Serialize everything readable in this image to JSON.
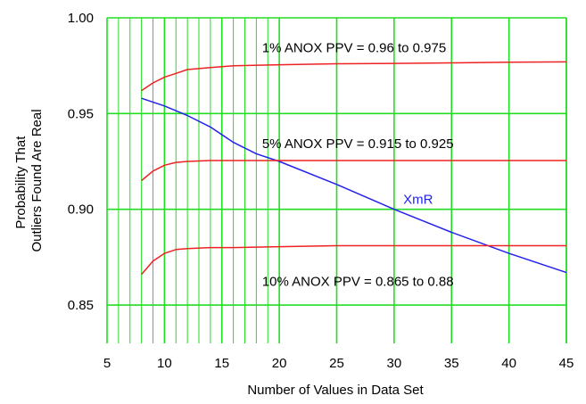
{
  "chart_data": {
    "type": "line",
    "xlabel": "Number of Values in Data Set",
    "ylabel": [
      "Probability That",
      "Outliers Found Are Real"
    ],
    "xlim": [
      5,
      45
    ],
    "ylim": [
      0.83,
      1.0
    ],
    "x_ticks": [
      "5",
      "10",
      "15",
      "20",
      "25",
      "30",
      "35",
      "40",
      "45"
    ],
    "y_ticks": [
      "0.85",
      "0.90",
      "0.95",
      "1.00"
    ],
    "grid": true,
    "grid_color": "#22dd22",
    "series": [
      {
        "name": "XmR",
        "color": "#2222ee",
        "x": [
          8,
          10,
          12,
          14,
          16,
          18,
          20,
          25,
          30,
          35,
          40,
          45
        ],
        "y": [
          0.958,
          0.954,
          0.949,
          0.943,
          0.935,
          0.929,
          0.925,
          0.913,
          0.9,
          0.888,
          0.877,
          0.867
        ]
      },
      {
        "color": "#ee2222",
        "x": [
          8,
          9,
          10,
          11,
          12,
          14,
          16,
          20,
          25,
          30,
          35,
          40,
          45
        ],
        "y": [
          0.962,
          0.966,
          0.969,
          0.971,
          0.973,
          0.974,
          0.975,
          0.9755,
          0.976,
          0.9762,
          0.9765,
          0.9768,
          0.977
        ]
      },
      {
        "color": "#ee2222",
        "x": [
          8,
          9,
          10,
          11,
          12,
          14,
          16,
          20,
          25,
          30,
          35,
          40,
          45
        ],
        "y": [
          0.915,
          0.92,
          0.923,
          0.9245,
          0.925,
          0.9255,
          0.9255,
          0.9255,
          0.9255,
          0.9255,
          0.9255,
          0.9255,
          0.9255
        ]
      },
      {
        "color": "#ee2222",
        "x": [
          8,
          9,
          10,
          11,
          12,
          14,
          16,
          20,
          25,
          30,
          35,
          40,
          45
        ],
        "y": [
          0.866,
          0.873,
          0.877,
          0.879,
          0.8795,
          0.88,
          0.88,
          0.8805,
          0.881,
          0.881,
          0.881,
          0.881,
          0.881
        ]
      }
    ],
    "annotations": [
      {
        "text": "1% ANOX  PPV = 0.96 to 0.975",
        "x": 18.5,
        "y": 0.982
      },
      {
        "text": "5% ANOX  PPV = 0.915 to 0.925",
        "x": 18.5,
        "y": 0.932
      },
      {
        "text": "10% ANOX  PPV = 0.865 to 0.88",
        "x": 18.5,
        "y": 0.86
      },
      {
        "text": "XmR",
        "x": 30.8,
        "y": 0.903,
        "color": "#2222ee"
      }
    ]
  }
}
